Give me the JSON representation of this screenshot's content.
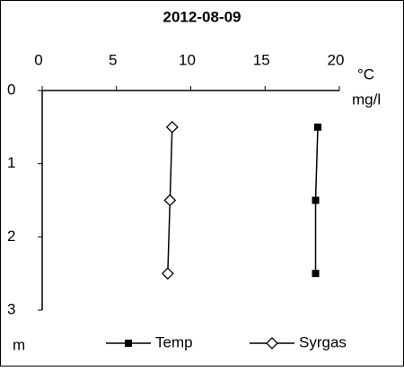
{
  "chart_data": {
    "type": "line",
    "title": "2012-08-09",
    "x_units": [
      "°C",
      "mg/l"
    ],
    "y_label": "m",
    "xlim": [
      0,
      20
    ],
    "xticks": [
      0,
      5,
      10,
      15,
      20
    ],
    "ylim": [
      0,
      3
    ],
    "yticks": [
      0,
      1,
      2,
      3
    ],
    "y_inverted": true,
    "series": [
      {
        "name": "Temp",
        "color": "#000000",
        "marker": "square",
        "x": [
          18.55,
          18.4,
          18.4
        ],
        "y": [
          0.5,
          1.5,
          2.5
        ]
      },
      {
        "name": "Syrgas",
        "color": "#000000",
        "marker": "diamond",
        "x": [
          8.75,
          8.6,
          8.45
        ],
        "y": [
          0.5,
          1.5,
          2.5
        ]
      }
    ]
  }
}
